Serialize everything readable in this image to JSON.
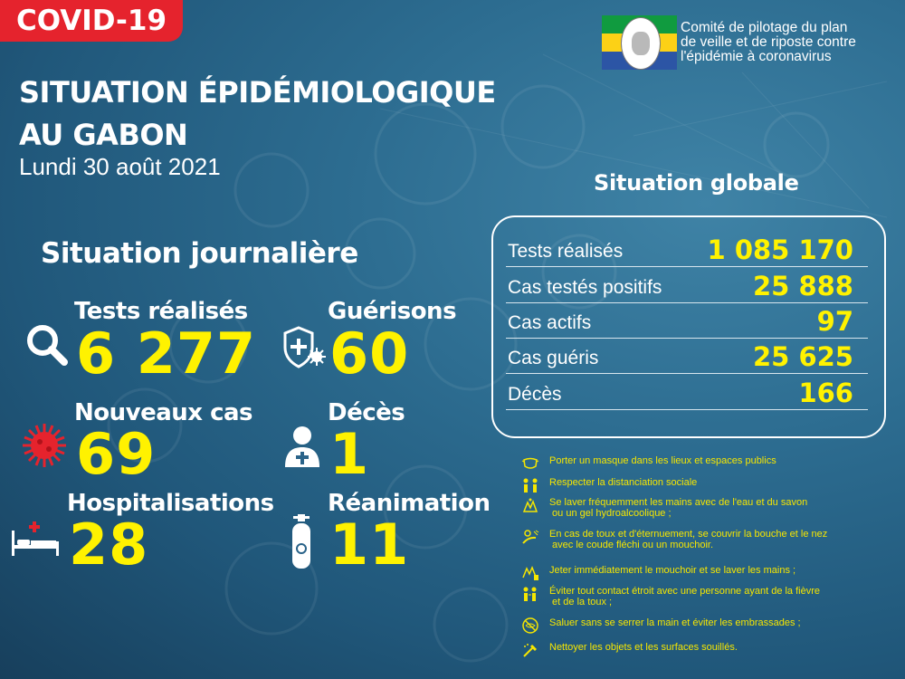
{
  "badge": "COVID-19",
  "committee": {
    "lines": [
      "Comité de pilotage du plan",
      "de veille et de riposte contre",
      "l'épidémie à coronavirus"
    ]
  },
  "title": {
    "line1": "SITUATION ÉPIDÉMIOLOGIQUE",
    "line2": "AU GABON"
  },
  "date": "Lundi 30 août 2021",
  "daily": {
    "heading": "Situation journalière",
    "tests": {
      "label": "Tests réalisés",
      "value": "6 277",
      "icon": "magnifier-icon"
    },
    "recoveries": {
      "label": "Guérisons",
      "value": "60",
      "icon": "shield-virus-icon"
    },
    "new_cases": {
      "label": "Nouveaux cas",
      "value": "69",
      "icon": "virus-icon"
    },
    "deaths": {
      "label": "Décès",
      "value": "1",
      "icon": "person-cross-icon"
    },
    "hospital": {
      "label": "Hospitalisations",
      "value": "28",
      "icon": "hospital-bed-icon"
    },
    "icu": {
      "label": "Réanimation",
      "value": "11",
      "icon": "oxygen-tank-icon"
    }
  },
  "global": {
    "heading": "Situation globale",
    "rows": [
      {
        "label": "Tests réalisés",
        "value": "1 085 170"
      },
      {
        "label": "Cas testés positifs",
        "value": "25 888"
      },
      {
        "label": "Cas actifs",
        "value": "97"
      },
      {
        "label": "Cas guéris",
        "value": "25 625"
      },
      {
        "label": "Décès",
        "value": "166"
      }
    ]
  },
  "advice": [
    {
      "icon": "mask-icon",
      "lines": [
        "Porter un masque dans les lieux et espaces publics"
      ]
    },
    {
      "icon": "distance-icon",
      "lines": [
        "Respecter la distanciation sociale"
      ]
    },
    {
      "icon": "handwash-icon",
      "lines": [
        "Se laver fréquemment les mains avec de l'eau et du savon",
        " ou un gel hydroalcoolique ;"
      ]
    },
    {
      "icon": "cough-elbow-icon",
      "lines": [
        "En cas de toux et d'éternuement, se couvrir la bouche et le nez",
        " avec le coude fléchi ou un mouchoir."
      ]
    },
    {
      "icon": "tissue-bin-icon",
      "lines": [
        "Jeter immédiatement le mouchoir et se laver les mains ;"
      ]
    },
    {
      "icon": "avoid-contact-icon",
      "lines": [
        "Éviter tout contact étroit avec une personne ayant de la fièvre",
        " et de la toux ;"
      ]
    },
    {
      "icon": "no-handshake-icon",
      "lines": [
        "Saluer sans se serrer la main et éviter les embrassades ;"
      ]
    },
    {
      "icon": "cleaning-icon",
      "lines": [
        "Nettoyer les objets et les surfaces souillés."
      ]
    }
  ],
  "colors": {
    "accent_yellow": "#fff200",
    "badge_red": "#e5232d",
    "advice_yellow": "#f6e600"
  }
}
